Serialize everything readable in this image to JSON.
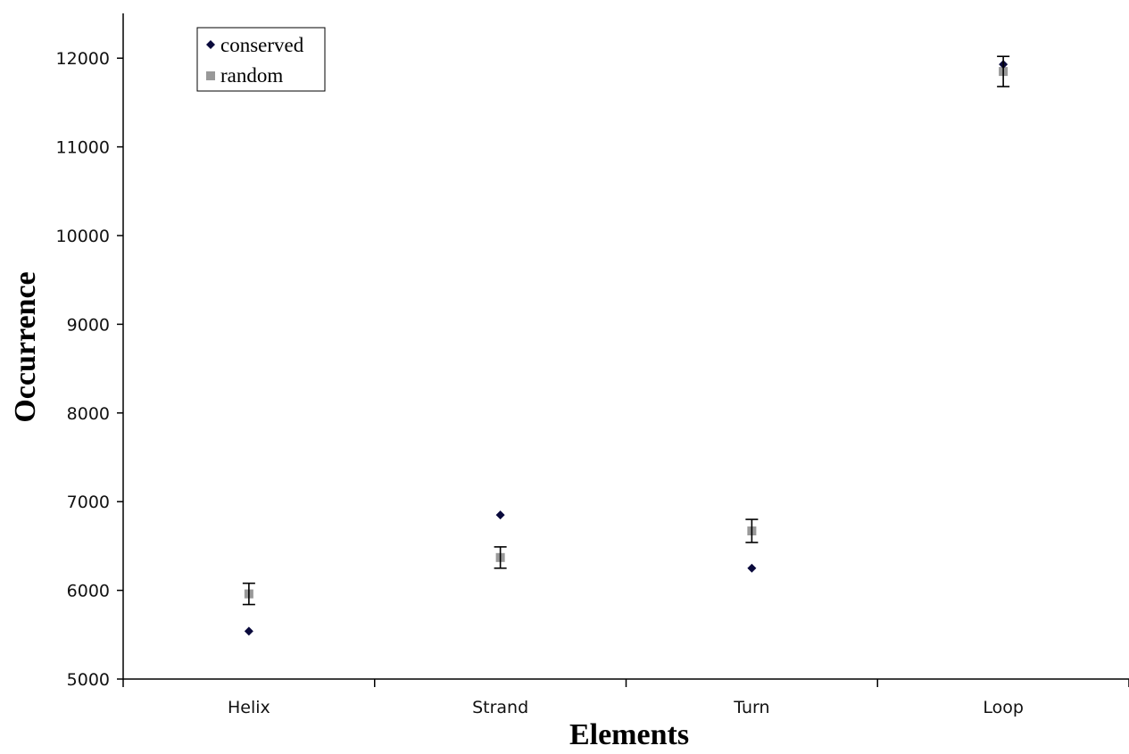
{
  "chart_data": {
    "type": "scatter",
    "title": "",
    "xlabel": "Elements",
    "ylabel": "Occurrence",
    "categories": [
      "Helix",
      "Strand",
      "Turn",
      "Loop"
    ],
    "ylim": [
      5000,
      12500
    ],
    "yticks": [
      "5000",
      "6000",
      "7000",
      "8000",
      "9000",
      "10000",
      "11000",
      "12000"
    ],
    "grid": false,
    "legend_position": "top-left",
    "series": [
      {
        "name": "conserved",
        "marker": "diamond",
        "color": "#0a0a3c",
        "values": [
          5540,
          6850,
          6250,
          11930
        ]
      },
      {
        "name": "random",
        "marker": "square",
        "color": "#999999",
        "values": [
          5960,
          6370,
          6670,
          11850
        ],
        "error": [
          120,
          120,
          130,
          170
        ]
      }
    ]
  }
}
